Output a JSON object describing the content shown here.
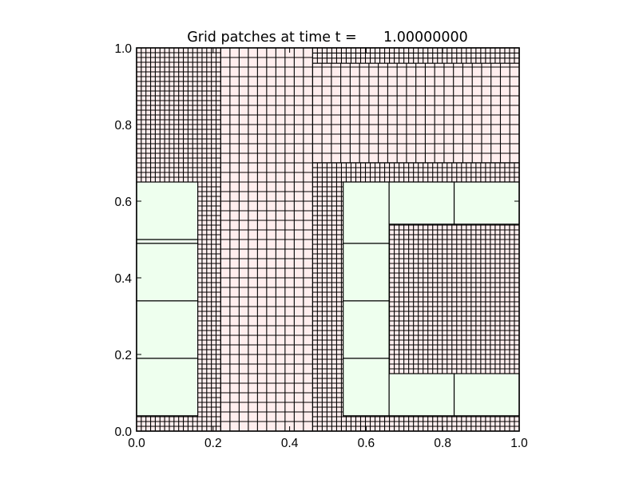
{
  "chart_data": {
    "type": "heatmap",
    "title": "Grid patches at time t =      1.00000000",
    "xlabel": "",
    "ylabel": "",
    "xlim": [
      0.0,
      1.0
    ],
    "ylim": [
      0.0,
      1.0
    ],
    "xticks": [
      "0.0",
      "0.2",
      "0.4",
      "0.6",
      "0.8",
      "1.0"
    ],
    "yticks": [
      "0.0",
      "0.2",
      "0.4",
      "0.6",
      "0.8",
      "1.0"
    ],
    "grid": false,
    "background_patch": {
      "x": [
        0.0,
        1.0
      ],
      "y": [
        0.0,
        1.0
      ],
      "fill": "#ffeeee",
      "cell_size": 0.025
    },
    "patches": [
      {
        "level": "fine",
        "x": [
          0.0,
          0.22
        ],
        "y": [
          0.0,
          1.0
        ],
        "fill": "#ffeeee",
        "cell_size": 0.0125
      },
      {
        "level": "medium",
        "x": [
          0.46,
          1.0
        ],
        "y": [
          0.7,
          1.0
        ],
        "fill": "#ffeeee",
        "cell_size": 0.025
      },
      {
        "level": "fine",
        "x": [
          0.46,
          1.0
        ],
        "y": [
          0.96,
          1.0
        ],
        "fill": "#ffeeee",
        "cell_size": 0.0125
      },
      {
        "level": "fine",
        "x": [
          0.46,
          1.0
        ],
        "y": [
          0.0,
          0.7
        ],
        "fill": "#ffeeee",
        "cell_size": 0.0125
      },
      {
        "level": "fine",
        "x": [
          0.46,
          1.0
        ],
        "y": [
          0.65,
          0.7
        ],
        "fill": "#ffeeee",
        "cell_size": 0.0125
      },
      {
        "level": "coarse",
        "x": [
          0.0,
          0.16
        ],
        "y": [
          0.04,
          0.19
        ],
        "fill": "#eeffee"
      },
      {
        "level": "coarse",
        "x": [
          0.0,
          0.16
        ],
        "y": [
          0.19,
          0.34
        ],
        "fill": "#eeffee"
      },
      {
        "level": "coarse",
        "x": [
          0.0,
          0.16
        ],
        "y": [
          0.34,
          0.49
        ],
        "fill": "#eeffee"
      },
      {
        "level": "coarse",
        "x": [
          0.0,
          0.16
        ],
        "y": [
          0.49,
          0.5
        ],
        "fill": "#eeffee"
      },
      {
        "level": "coarse",
        "x": [
          0.0,
          0.16
        ],
        "y": [
          0.5,
          0.65
        ],
        "fill": "#eeffee"
      },
      {
        "level": "coarse",
        "x": [
          0.54,
          0.66
        ],
        "y": [
          0.04,
          0.19
        ],
        "fill": "#eeffee"
      },
      {
        "level": "coarse",
        "x": [
          0.54,
          0.66
        ],
        "y": [
          0.19,
          0.34
        ],
        "fill": "#eeffee"
      },
      {
        "level": "coarse",
        "x": [
          0.54,
          0.66
        ],
        "y": [
          0.34,
          0.49
        ],
        "fill": "#eeffee"
      },
      {
        "level": "coarse",
        "x": [
          0.54,
          0.66
        ],
        "y": [
          0.49,
          0.65
        ],
        "fill": "#eeffee"
      },
      {
        "level": "coarse",
        "x": [
          0.66,
          0.83
        ],
        "y": [
          0.04,
          0.15
        ],
        "fill": "#eeffee"
      },
      {
        "level": "coarse",
        "x": [
          0.83,
          1.0
        ],
        "y": [
          0.04,
          0.15
        ],
        "fill": "#eeffee"
      },
      {
        "level": "coarse",
        "x": [
          0.66,
          0.83
        ],
        "y": [
          0.54,
          0.65
        ],
        "fill": "#eeffee"
      },
      {
        "level": "coarse",
        "x": [
          0.83,
          1.0
        ],
        "y": [
          0.54,
          0.65
        ],
        "fill": "#eeffee"
      },
      {
        "level": "medium",
        "x": [
          0.22,
          0.46
        ],
        "y": [
          0.0,
          1.0
        ],
        "fill": "#ffeeee",
        "cell_size": 0.025
      }
    ]
  },
  "colors": {
    "fine_fill": "#ffeeee",
    "coarse_fill": "#eeffee",
    "grid_line": "#000000",
    "background": "#ffffff"
  }
}
